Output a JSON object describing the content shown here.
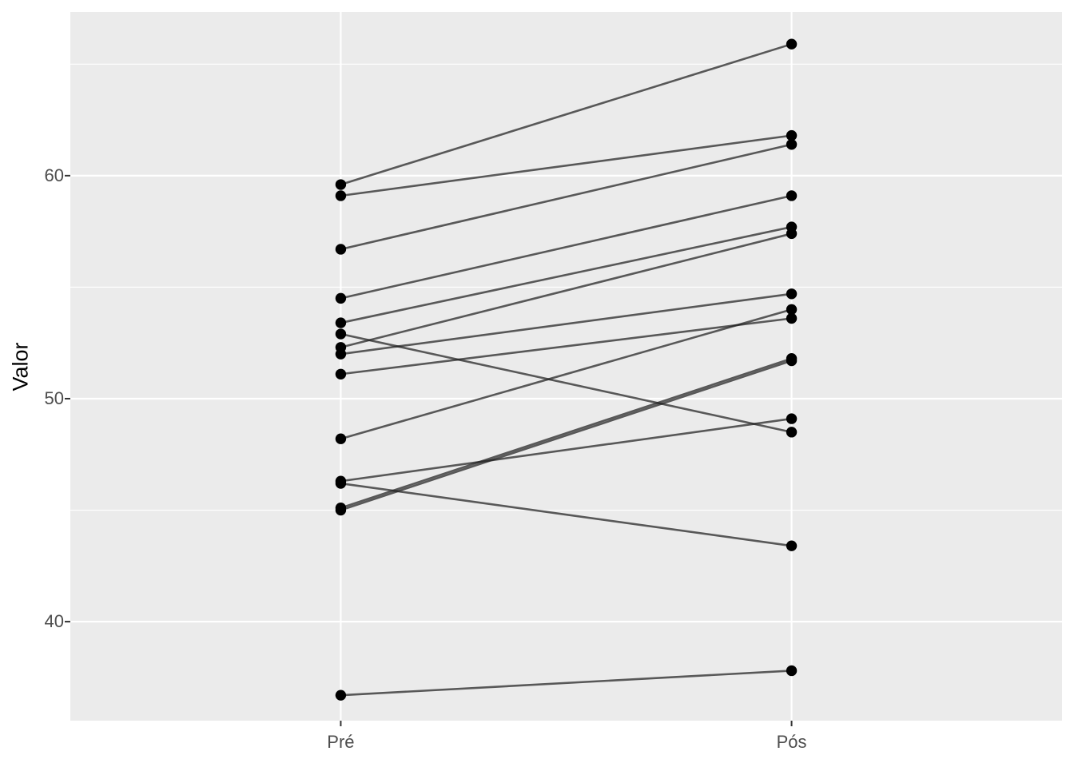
{
  "chart_data": {
    "type": "line",
    "subtype": "paired-slope-chart",
    "title": "",
    "xlabel": "",
    "ylabel": "Valor",
    "categories": [
      "Pré",
      "Pós"
    ],
    "y_tick_labels": [
      "60",
      "50",
      "40"
    ],
    "y_major_ticks": [
      60,
      50,
      40
    ],
    "y_minor_gridlines": [
      65,
      55,
      45,
      35
    ],
    "ylim": [
      35.56,
      67.34
    ],
    "grid": "white major and minor horizontal gridlines plus vertical major gridlines at each category, on grey panel",
    "legend": "none",
    "pairs": [
      {
        "pre": 59.6,
        "pos": 65.9
      },
      {
        "pre": 59.1,
        "pos": 61.8
      },
      {
        "pre": 56.7,
        "pos": 61.4
      },
      {
        "pre": 54.5,
        "pos": 59.1
      },
      {
        "pre": 53.4,
        "pos": 57.7
      },
      {
        "pre": 52.9,
        "pos": 48.5
      },
      {
        "pre": 52.3,
        "pos": 57.4
      },
      {
        "pre": 52.0,
        "pos": 54.7
      },
      {
        "pre": 51.1,
        "pos": 53.6
      },
      {
        "pre": 48.2,
        "pos": 54.0
      },
      {
        "pre": 46.3,
        "pos": 49.1
      },
      {
        "pre": 46.2,
        "pos": 43.4
      },
      {
        "pre": 45.1,
        "pos": 51.8
      },
      {
        "pre": 45.0,
        "pos": 51.7
      },
      {
        "pre": 36.7,
        "pos": 37.8
      }
    ],
    "theme": {
      "panel_bg": "#ebebeb",
      "gridline_color": "#ffffff",
      "point_color": "#000000",
      "line_color": "#1f1f1f",
      "tick_mark_color": "#333333",
      "tick_label_color": "#4d4d4d",
      "axis_title_color": "#000000"
    }
  }
}
